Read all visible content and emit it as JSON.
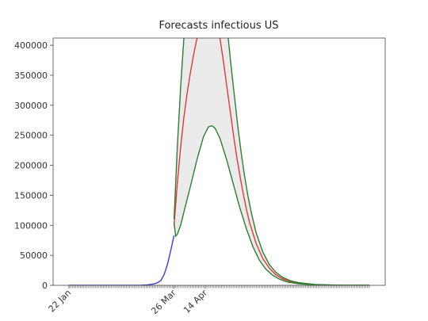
{
  "chart_data": {
    "type": "line",
    "title": "Forecasts infectious US",
    "xlim": [
      -9.7,
      192.7
    ],
    "ylim": [
      0,
      412000
    ],
    "xticks": [
      {
        "value": 0,
        "label": "22 Jan"
      },
      {
        "value": 64,
        "label": "26 Mar"
      },
      {
        "value": 83,
        "label": "14 Apr"
      }
    ],
    "yticks": [
      0,
      50000,
      100000,
      150000,
      200000,
      250000,
      300000,
      350000,
      400000
    ],
    "series": [
      {
        "color": "#3b3bd0",
        "x": [
          0,
          4,
          8,
          12,
          16,
          20,
          24,
          28,
          32,
          36,
          40,
          44,
          48,
          52,
          54,
          56,
          58,
          60,
          62,
          64
        ],
        "values": [
          0,
          0,
          0,
          0,
          0,
          0,
          0,
          0,
          0,
          0,
          100,
          300,
          800,
          2500,
          4500,
          8000,
          18000,
          35000,
          58000,
          83000
        ]
      },
      {
        "color": "#e03a3a",
        "x": [
          64,
          66,
          68,
          70,
          72,
          74,
          76,
          78,
          85,
          92,
          94,
          96,
          98,
          100,
          102,
          104,
          106,
          108,
          110,
          114,
          118,
          122,
          126,
          130,
          135,
          140,
          150,
          160,
          170,
          183
        ],
        "values": [
          100000,
          170000,
          230000,
          280000,
          320000,
          355000,
          385000,
          412000,
          null,
          412000,
          375000,
          335000,
          295000,
          255000,
          218000,
          185000,
          155000,
          128000,
          105000,
          70000,
          45000,
          29000,
          18000,
          11000,
          6000,
          3500,
          1200,
          400,
          150,
          50
        ]
      },
      {
        "color": "#2e7d32",
        "fill_color": "#ebebeb",
        "x": [
          64,
          66,
          68,
          70,
          84,
          97,
          99,
          101,
          103,
          105,
          107,
          109,
          111,
          114,
          118,
          122,
          126,
          130,
          135,
          140,
          150,
          160,
          170,
          183
        ],
        "values": [
          110000,
          230000,
          330000,
          412000,
          null,
          412000,
          360000,
          310000,
          262000,
          220000,
          182000,
          150000,
          122000,
          88000,
          56000,
          35000,
          22000,
          13500,
          7500,
          4500,
          1500,
          500,
          180,
          60
        ]
      },
      {
        "color": "#2e7d32",
        "x": [
          64,
          65,
          66,
          68,
          70,
          74,
          78,
          82,
          85,
          87,
          89,
          92,
          96,
          100,
          104,
          108,
          112,
          116,
          120,
          124,
          128,
          133,
          140,
          150,
          160,
          170,
          183
        ],
        "values": [
          105000,
          82000,
          85000,
          100000,
          122000,
          165000,
          210000,
          248000,
          264000,
          266000,
          262000,
          245000,
          210000,
          170000,
          130000,
          95000,
          65000,
          42000,
          27000,
          17000,
          10500,
          5500,
          2500,
          800,
          250,
          80,
          20
        ]
      }
    ]
  }
}
